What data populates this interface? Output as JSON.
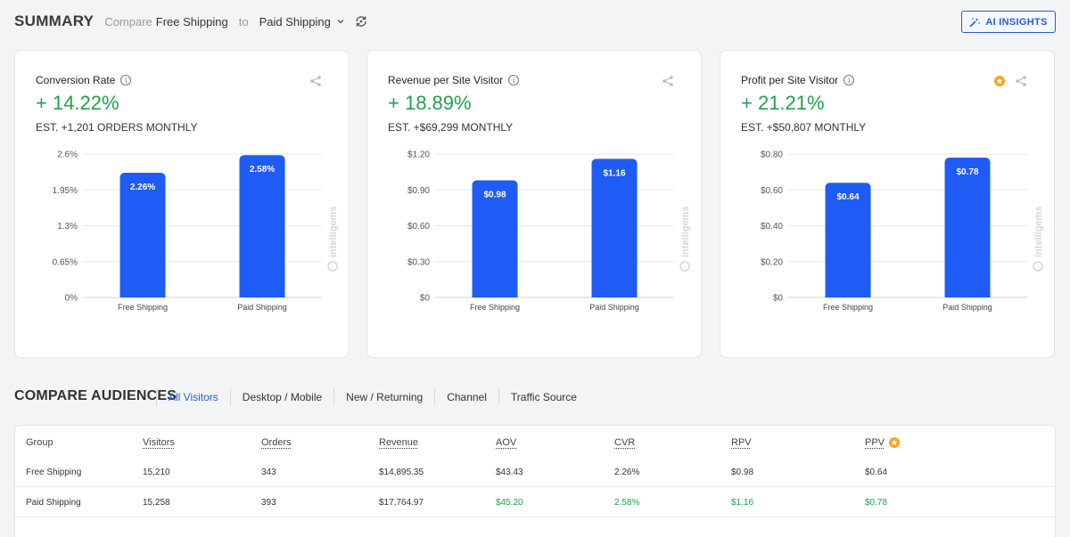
{
  "header": {
    "title": "SUMMARY",
    "compare_label": "Compare",
    "baseline": "Free Shipping",
    "to_label": "to",
    "variant": "Paid Shipping",
    "ai_insights_label": "AI INSIGHTS"
  },
  "colors": {
    "accent": "#2a5bd7",
    "bar": "#1f5bf5",
    "positive": "#1ea34a",
    "star": "#f5a623"
  },
  "watermark": "intelligems",
  "cards": [
    {
      "title": "Conversion Rate",
      "lift": "+ 14.22%",
      "estimate": "EST. +1,201 ORDERS MONTHLY",
      "chart_data": {
        "type": "bar",
        "categories": [
          "Free Shipping",
          "Paid Shipping"
        ],
        "values": [
          2.26,
          2.58
        ],
        "value_labels": [
          "2.26%",
          "2.58%"
        ],
        "ylim": [
          0,
          2.6
        ],
        "yticks": [
          0,
          0.65,
          1.3,
          1.95,
          2.6
        ],
        "ytick_labels": [
          "0%",
          "0.65%",
          "1.3%",
          "1.95%",
          "2.6%"
        ]
      }
    },
    {
      "title": "Revenue per Site Visitor",
      "lift": "+ 18.89%",
      "estimate": "EST. +$69,299 MONTHLY",
      "chart_data": {
        "type": "bar",
        "categories": [
          "Free Shipping",
          "Paid Shipping"
        ],
        "values": [
          0.98,
          1.16
        ],
        "value_labels": [
          "$0.98",
          "$1.16"
        ],
        "ylim": [
          0,
          1.2
        ],
        "yticks": [
          0,
          0.3,
          0.6,
          0.9,
          1.2
        ],
        "ytick_labels": [
          "$0",
          "$0.30",
          "$0.60",
          "$0.90",
          "$1.20"
        ]
      }
    },
    {
      "title": "Profit per Site Visitor",
      "lift": "+ 21.21%",
      "estimate": "EST. +$50,807 MONTHLY",
      "starred": true,
      "chart_data": {
        "type": "bar",
        "categories": [
          "Free Shipping",
          "Paid Shipping"
        ],
        "values": [
          0.64,
          0.78
        ],
        "value_labels": [
          "$0.64",
          "$0.78"
        ],
        "ylim": [
          0,
          0.8
        ],
        "yticks": [
          0,
          0.2,
          0.4,
          0.6,
          0.8
        ],
        "ytick_labels": [
          "$0",
          "$0.20",
          "$0.40",
          "$0.60",
          "$0.80"
        ]
      }
    }
  ],
  "audiences": {
    "title": "COMPARE AUDIENCES",
    "tabs": [
      "All Visitors",
      "Desktop / Mobile",
      "New / Returning",
      "Channel",
      "Traffic Source"
    ],
    "active_tab": "All Visitors"
  },
  "table": {
    "columns": [
      "Group",
      "Visitors",
      "Orders",
      "Revenue",
      "AOV",
      "CVR",
      "RPV",
      "PPV"
    ],
    "rows": [
      [
        "Free Shipping",
        "15,210",
        "343",
        "$14,895.35",
        "$43.43",
        "2.26%",
        "$0.98",
        "$0.64"
      ],
      [
        "Paid Shipping",
        "15,258",
        "393",
        "$17,764.97",
        "$45.20",
        "2.58%",
        "$1.16",
        "$0.78"
      ]
    ]
  }
}
